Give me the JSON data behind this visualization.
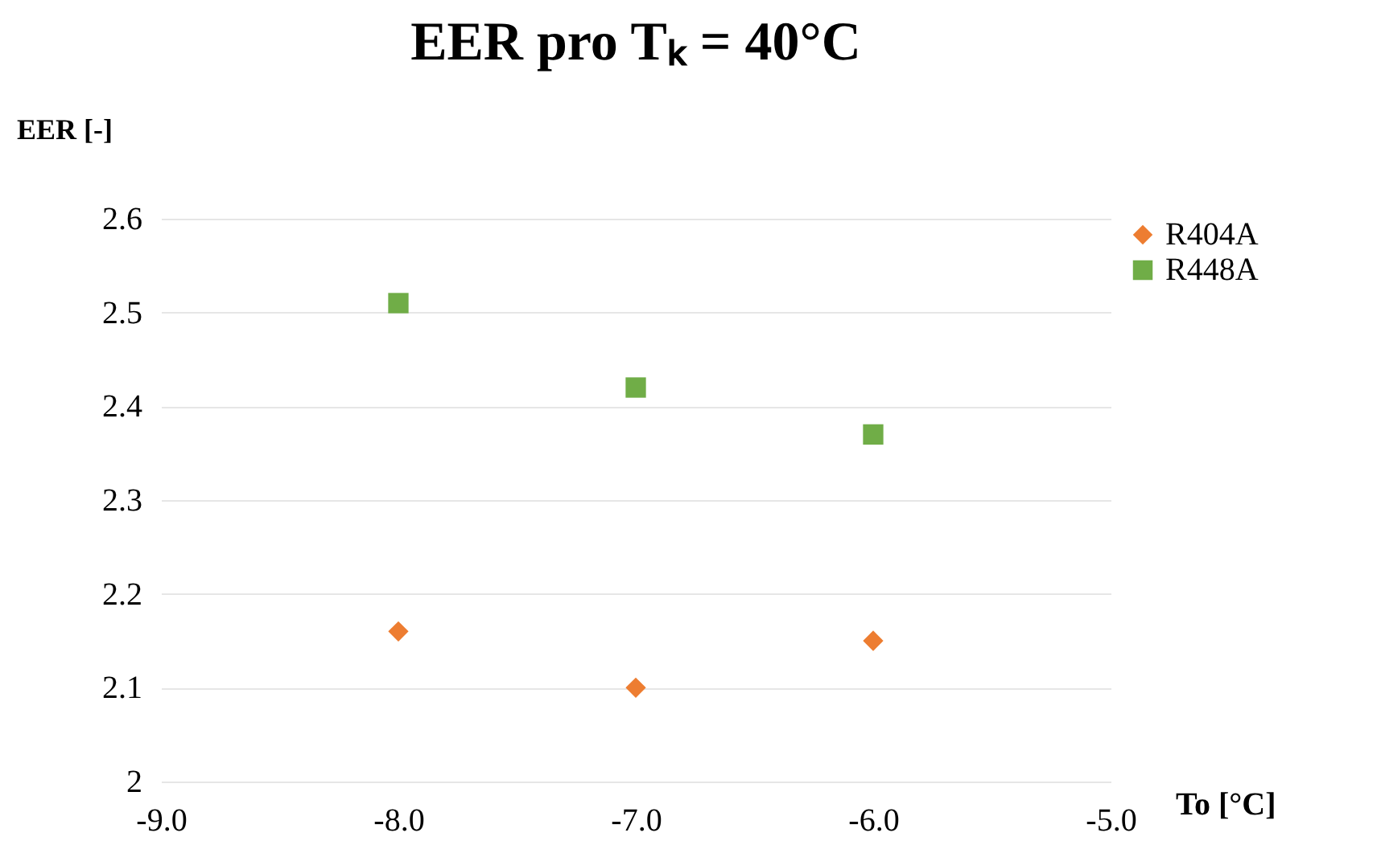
{
  "chart_data": {
    "type": "scatter",
    "title": "EER pro Tₖ = 40°C",
    "xlabel": "To [°C]",
    "ylabel": "EER [-]",
    "x": [
      -8,
      -7,
      -6
    ],
    "series": [
      {
        "name": "R404A",
        "color": "#ed7d31",
        "marker": "diamond",
        "values": [
          2.16,
          2.1,
          2.15
        ]
      },
      {
        "name": "R448A",
        "color": "#70ad47",
        "marker": "square",
        "values": [
          2.51,
          2.42,
          2.37
        ]
      }
    ],
    "xlim": [
      -9,
      -5
    ],
    "xticks": [
      {
        "value": -9,
        "label": "-9.0"
      },
      {
        "value": -8,
        "label": "-8.0"
      },
      {
        "value": -7,
        "label": "-7.0"
      },
      {
        "value": -6,
        "label": "-6.0"
      },
      {
        "value": -5,
        "label": "-5.0"
      }
    ],
    "ylim": [
      2,
      2.6
    ],
    "yticks": [
      2,
      2.1,
      2.2,
      2.3,
      2.4,
      2.5,
      2.6
    ],
    "grid": "y",
    "legend": "right"
  }
}
